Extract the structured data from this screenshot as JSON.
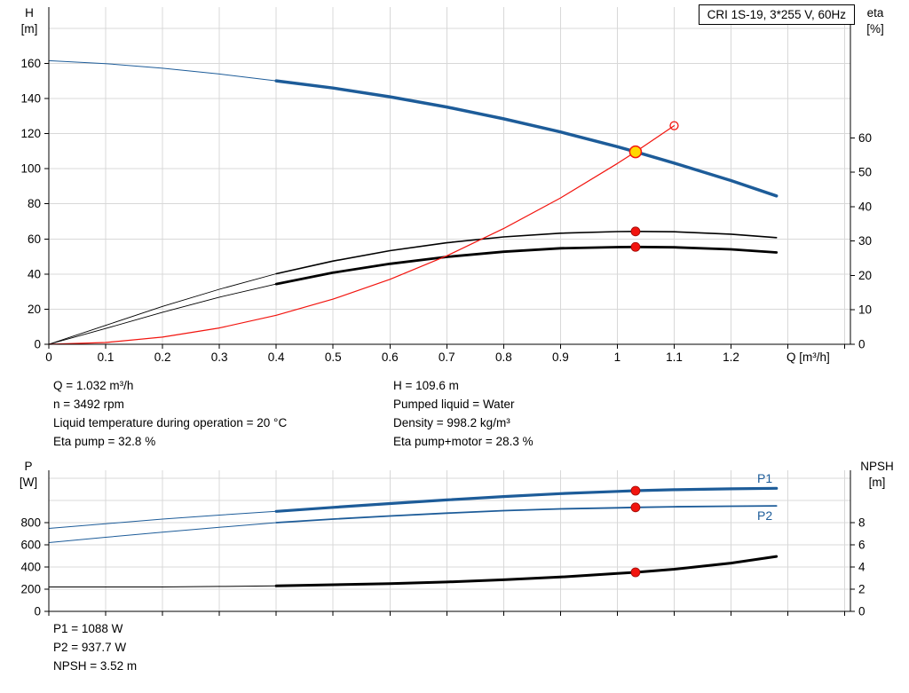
{
  "colors": {
    "blue": "#1d5c99",
    "red": "#f2140e",
    "red_dark": "#9e0b07",
    "yellow": "#ffd800",
    "grid": "#d8d8d8",
    "axis": "#000000"
  },
  "info": {
    "top_left": [
      "Q = 1.032 m³/h",
      "n = 3492 rpm",
      "Liquid temperature during operation = 20 °C",
      "Eta pump = 32.8 %"
    ],
    "top_right": [
      "H = 109.6 m",
      "Pumped liquid = Water",
      "Density = 998.2 kg/m³",
      "Eta pump+motor = 28.3 %"
    ],
    "bottom": [
      "P1 = 1088 W",
      "P2 = 937.7 W",
      "NPSH = 3.52 m"
    ]
  },
  "chart_data": [
    {
      "type": "line",
      "title": "CRI 1S-19, 3*255 V, 60Hz",
      "x_axis": {
        "label": "Q [m³/h]",
        "min": 0,
        "max": 1.41,
        "grid_extend_to": 1.4,
        "ticks": [
          0,
          0.1,
          0.2,
          0.3,
          0.4,
          0.5,
          0.6,
          0.7,
          0.8,
          0.9,
          1,
          1.1,
          1.2
        ]
      },
      "y_left": {
        "label_lines": [
          "H",
          "[m]"
        ],
        "min": 0,
        "max": 192,
        "grid_extend_to": 180,
        "ticks": [
          0,
          20,
          40,
          60,
          80,
          100,
          120,
          140,
          160
        ]
      },
      "y_right": {
        "label_lines": [
          "eta",
          "[%]"
        ],
        "min": 0,
        "max": 98,
        "ticks": [
          0,
          10,
          20,
          30,
          40,
          50,
          60
        ]
      },
      "series": [
        {
          "name": "h-q-lead",
          "axis": "left",
          "color": "blue",
          "width": 1,
          "points": [
            [
              0,
              161.5
            ],
            [
              0.1,
              159.8
            ],
            [
              0.2,
              157.2
            ],
            [
              0.3,
              153.9
            ],
            [
              0.4,
              150
            ]
          ]
        },
        {
          "name": "h-q-curve",
          "axis": "left",
          "color": "blue",
          "width": 3.5,
          "points": [
            [
              0.4,
              150
            ],
            [
              0.5,
              145.9
            ],
            [
              0.6,
              140.9
            ],
            [
              0.7,
              135.1
            ],
            [
              0.8,
              128.4
            ],
            [
              0.9,
              120.9
            ],
            [
              1.0,
              112.5
            ],
            [
              1.032,
              109.6
            ],
            [
              1.1,
              103.2
            ],
            [
              1.2,
              93.2
            ],
            [
              1.28,
              84.5
            ]
          ]
        },
        {
          "name": "eta-pump-lead",
          "axis": "right",
          "color": "#000000",
          "width": 0.9,
          "points": [
            [
              0,
              0
            ],
            [
              0.1,
              5.5
            ],
            [
              0.2,
              11
            ],
            [
              0.3,
              16
            ],
            [
              0.4,
              20.5
            ]
          ]
        },
        {
          "name": "eta-pump-curve",
          "axis": "right",
          "color": "#000000",
          "width": 1.6,
          "points": [
            [
              0.4,
              20.5
            ],
            [
              0.5,
              24.2
            ],
            [
              0.6,
              27.2
            ],
            [
              0.7,
              29.5
            ],
            [
              0.8,
              31.2
            ],
            [
              0.9,
              32.3
            ],
            [
              1.0,
              32.75
            ],
            [
              1.032,
              32.8
            ],
            [
              1.1,
              32.7
            ],
            [
              1.2,
              32
            ],
            [
              1.28,
              31
            ]
          ]
        },
        {
          "name": "eta-pump-motor-lead",
          "axis": "right",
          "color": "#000000",
          "width": 0.9,
          "points": [
            [
              0,
              0
            ],
            [
              0.1,
              4.6
            ],
            [
              0.2,
              9.3
            ],
            [
              0.3,
              13.7
            ],
            [
              0.4,
              17.5
            ]
          ]
        },
        {
          "name": "eta-pump-motor-curve",
          "axis": "right",
          "color": "#000000",
          "width": 2.8,
          "points": [
            [
              0.4,
              17.5
            ],
            [
              0.5,
              20.8
            ],
            [
              0.6,
              23.4
            ],
            [
              0.7,
              25.4
            ],
            [
              0.8,
              26.9
            ],
            [
              0.9,
              27.9
            ],
            [
              1.0,
              28.25
            ],
            [
              1.032,
              28.3
            ],
            [
              1.1,
              28.2
            ],
            [
              1.2,
              27.6
            ],
            [
              1.28,
              26.7
            ]
          ]
        },
        {
          "name": "system-curve",
          "axis": "left",
          "color": "red",
          "width": 1.2,
          "points": [
            [
              0,
              0
            ],
            [
              0.1,
              1.0
            ],
            [
              0.2,
              4.1
            ],
            [
              0.3,
              9.3
            ],
            [
              0.4,
              16.5
            ],
            [
              0.5,
              25.7
            ],
            [
              0.6,
              37
            ],
            [
              0.7,
              50.4
            ],
            [
              0.8,
              65.9
            ],
            [
              0.9,
              83.3
            ],
            [
              1.0,
              102.9
            ],
            [
              1.032,
              109.6
            ],
            [
              1.1,
              124.5
            ]
          ]
        }
      ],
      "markers": [
        {
          "name": "system-curve-end-circle",
          "x": 1.1,
          "y": 124.5,
          "axis": "left",
          "r": 4.5,
          "fill": "none",
          "stroke": "red",
          "sw": 1.3
        },
        {
          "name": "eta-pump-point",
          "x": 1.032,
          "y": 32.8,
          "axis": "right",
          "r": 5,
          "fill": "red",
          "stroke": "red_dark",
          "sw": 0.8
        },
        {
          "name": "eta-pump-motor-point",
          "x": 1.032,
          "y": 28.3,
          "axis": "right",
          "r": 5,
          "fill": "red",
          "stroke": "red_dark",
          "sw": 0.8
        },
        {
          "name": "duty-point",
          "x": 1.032,
          "y": 109.6,
          "axis": "left",
          "r": 6.5,
          "fill": "yellow",
          "stroke": "red",
          "sw": 1.5
        }
      ]
    },
    {
      "type": "line",
      "x_axis": {
        "min": 0,
        "max": 1.41,
        "grid_extend_to": 1.4,
        "show_labels": false,
        "ticks": [
          0,
          0.1,
          0.2,
          0.3,
          0.4,
          0.5,
          0.6,
          0.7,
          0.8,
          0.9,
          1,
          1.1,
          1.2
        ]
      },
      "y_left": {
        "label_lines": [
          "P",
          "[W]"
        ],
        "min": 0,
        "max": 1272,
        "grid_extend_to": 1200,
        "ticks": [
          0,
          200,
          400,
          600,
          800
        ]
      },
      "y_right": {
        "label_lines": [
          "NPSH",
          "[m]"
        ],
        "min": 0,
        "max": 12.72,
        "ticks": [
          0,
          2,
          4,
          6,
          8
        ]
      },
      "series": [
        {
          "name": "p1-lead",
          "axis": "left",
          "color": "blue",
          "width": 1,
          "points": [
            [
              0,
              748
            ],
            [
              0.1,
              790
            ],
            [
              0.2,
              832
            ],
            [
              0.3,
              868
            ],
            [
              0.4,
              902
            ]
          ]
        },
        {
          "name": "p1-curve",
          "label": "P1",
          "axis": "left",
          "color": "blue",
          "width": 3.2,
          "points": [
            [
              0.4,
              902
            ],
            [
              0.5,
              938
            ],
            [
              0.6,
              972
            ],
            [
              0.7,
              1005
            ],
            [
              0.8,
              1035
            ],
            [
              0.9,
              1062
            ],
            [
              1.0,
              1082
            ],
            [
              1.032,
              1088
            ],
            [
              1.1,
              1097
            ],
            [
              1.2,
              1105
            ],
            [
              1.28,
              1110
            ]
          ]
        },
        {
          "name": "p2-lead",
          "axis": "left",
          "color": "blue",
          "width": 1,
          "points": [
            [
              0,
              620
            ],
            [
              0.1,
              668
            ],
            [
              0.2,
              714
            ],
            [
              0.3,
              758
            ],
            [
              0.4,
              800
            ]
          ]
        },
        {
          "name": "p2-curve",
          "label": "P2",
          "axis": "left",
          "color": "blue",
          "width": 1.8,
          "points": [
            [
              0.4,
              800
            ],
            [
              0.5,
              832
            ],
            [
              0.6,
              860
            ],
            [
              0.7,
              886
            ],
            [
              0.8,
              908
            ],
            [
              0.9,
              924
            ],
            [
              1.0,
              934
            ],
            [
              1.032,
              937.7
            ],
            [
              1.1,
              943
            ],
            [
              1.2,
              948
            ],
            [
              1.28,
              951
            ]
          ]
        },
        {
          "name": "npsh-lead",
          "axis": "right",
          "color": "#000000",
          "width": 1,
          "points": [
            [
              0,
              2.2
            ],
            [
              0.2,
              2.2
            ],
            [
              0.3,
              2.25
            ],
            [
              0.4,
              2.3
            ]
          ]
        },
        {
          "name": "npsh-curve",
          "axis": "right",
          "color": "#000000",
          "width": 3,
          "points": [
            [
              0.4,
              2.3
            ],
            [
              0.5,
              2.4
            ],
            [
              0.6,
              2.5
            ],
            [
              0.7,
              2.65
            ],
            [
              0.8,
              2.85
            ],
            [
              0.9,
              3.1
            ],
            [
              1.0,
              3.42
            ],
            [
              1.032,
              3.52
            ],
            [
              1.1,
              3.8
            ],
            [
              1.2,
              4.35
            ],
            [
              1.28,
              4.95
            ]
          ]
        }
      ],
      "markers": [
        {
          "name": "p1-point",
          "x": 1.032,
          "y": 1088,
          "axis": "left",
          "r": 5,
          "fill": "red",
          "stroke": "red_dark",
          "sw": 0.8
        },
        {
          "name": "p2-point",
          "x": 1.032,
          "y": 937.7,
          "axis": "left",
          "r": 5,
          "fill": "red",
          "stroke": "red_dark",
          "sw": 0.8
        },
        {
          "name": "npsh-point",
          "x": 1.032,
          "y": 3.52,
          "axis": "right",
          "r": 5,
          "fill": "red",
          "stroke": "red_dark",
          "sw": 0.8
        }
      ]
    }
  ]
}
